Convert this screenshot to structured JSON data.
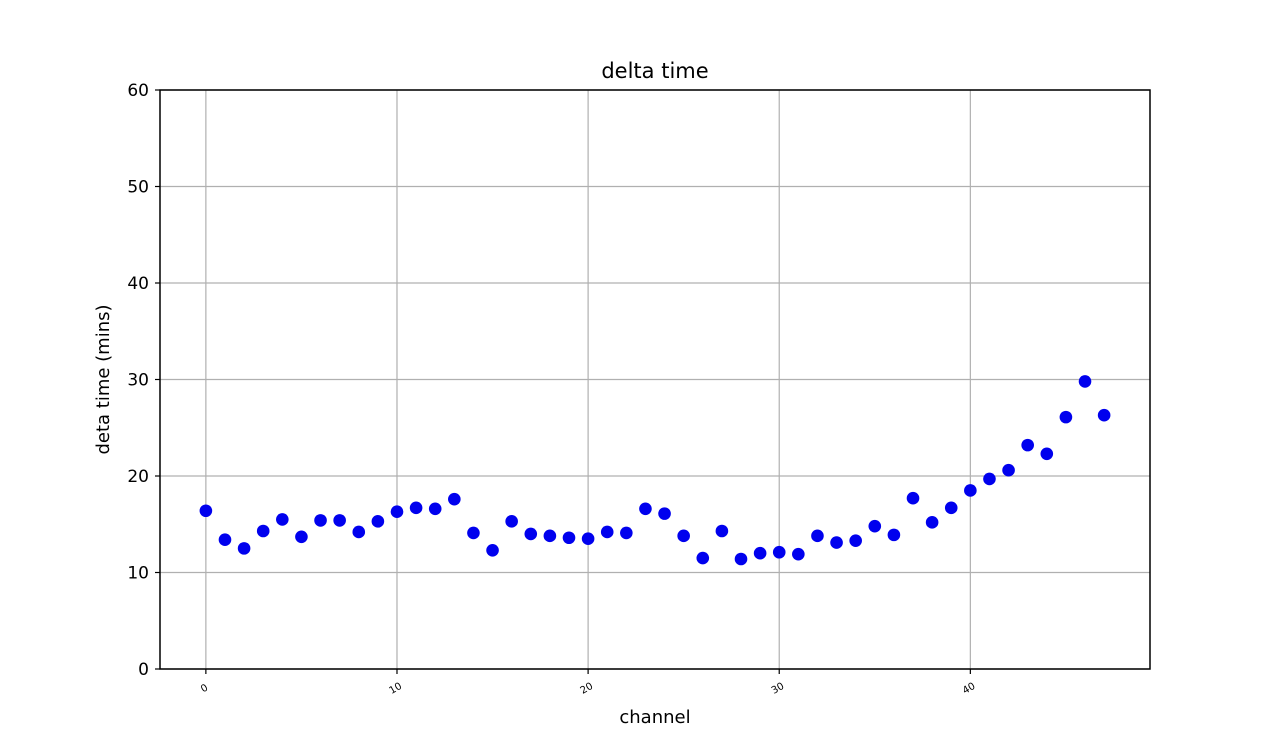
{
  "chart_data": {
    "type": "scatter",
    "title": "delta time",
    "xlabel": "channel",
    "ylabel": "deta time (mins)",
    "xlim": [
      -2.4,
      49.4
    ],
    "ylim": [
      0,
      60
    ],
    "x_ticks": [
      0,
      10,
      20,
      30,
      40
    ],
    "y_ticks": [
      0,
      10,
      20,
      30,
      40,
      50,
      60
    ],
    "grid": true,
    "marker_color": "#0000ee",
    "series": [
      {
        "x": [
          0,
          1,
          2,
          3,
          4,
          5,
          6,
          7,
          8,
          9,
          10,
          11,
          12,
          13,
          14,
          15,
          16,
          17,
          18,
          19,
          20,
          21,
          22,
          23,
          24,
          25,
          26,
          27,
          28,
          29,
          30,
          31,
          32,
          33,
          34,
          35,
          36,
          37,
          38,
          39,
          40,
          41,
          42,
          43,
          44,
          45,
          46,
          47
        ],
        "y": [
          16.4,
          13.4,
          12.5,
          14.3,
          15.5,
          13.7,
          15.4,
          15.4,
          14.2,
          15.3,
          16.3,
          16.7,
          16.6,
          17.6,
          14.1,
          12.3,
          15.3,
          14.0,
          13.8,
          13.6,
          13.5,
          14.2,
          14.1,
          16.6,
          16.1,
          13.8,
          11.5,
          14.3,
          11.4,
          12.0,
          12.1,
          11.9,
          13.8,
          13.1,
          13.3,
          14.8,
          13.9,
          17.7,
          15.2,
          16.7,
          18.5,
          19.7,
          20.6,
          23.2,
          22.3,
          26.1,
          29.8,
          26.3
        ]
      }
    ]
  }
}
